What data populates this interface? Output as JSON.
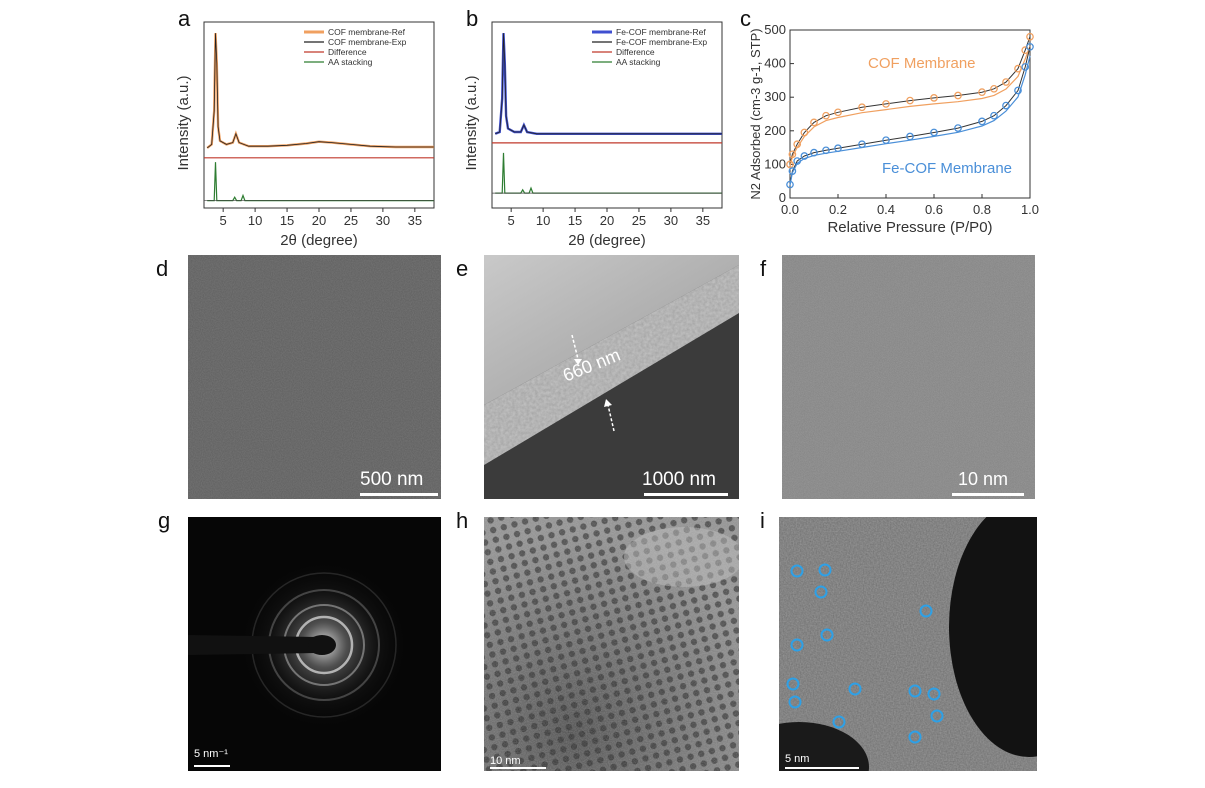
{
  "panel_labels": [
    "a",
    "b",
    "c",
    "d",
    "e",
    "f",
    "g",
    "h",
    "i"
  ],
  "colors": {
    "orange": "#f0a060",
    "blue": "#3f4fd0",
    "red": "#c0392b",
    "green": "#2e7d32",
    "dark": "#222222",
    "light_blue": "#4a8fd8"
  },
  "chart_data": [
    {
      "type": "line",
      "xlabel": "2θ (degree)",
      "ylabel": "Intensity (a.u.)",
      "xlim": [
        2,
        38
      ],
      "xticks": [
        "5",
        "10",
        "15",
        "20",
        "25",
        "30",
        "35"
      ],
      "legend": [
        "COF membrane-Ref",
        "COF membrane-Exp",
        "Difference",
        "AA stacking"
      ],
      "legend_position": "top-right",
      "series": [
        {
          "name": "COF membrane-Ref",
          "x": [
            2.5,
            3.2,
            3.6,
            3.8,
            4.0,
            4.2,
            4.5,
            5.5,
            6.5,
            7.0,
            7.5,
            9,
            12,
            15,
            18,
            20,
            22,
            25,
            28,
            32,
            38
          ],
          "y": [
            0.34,
            0.36,
            0.55,
            0.99,
            0.82,
            0.46,
            0.38,
            0.36,
            0.37,
            0.42,
            0.37,
            0.35,
            0.35,
            0.355,
            0.365,
            0.375,
            0.37,
            0.36,
            0.35,
            0.345,
            0.345
          ]
        },
        {
          "name": "Difference",
          "x": [
            2,
            38
          ],
          "y": [
            0.27,
            0.27
          ]
        },
        {
          "name": "AA stacking",
          "x": [
            2.5,
            3.6,
            3.8,
            4.0,
            4.3,
            6.5,
            6.8,
            7.1,
            7.8,
            8.1,
            8.4,
            38
          ],
          "y": [
            0.0,
            0.0,
            0.23,
            0.0,
            0.0,
            0.0,
            0.02,
            0.0,
            0.0,
            0.03,
            0.0,
            0.0
          ]
        }
      ]
    },
    {
      "type": "line",
      "xlabel": "2θ (degree)",
      "ylabel": "Intensity (a.u.)",
      "xlim": [
        2,
        38
      ],
      "xticks": [
        "5",
        "10",
        "15",
        "20",
        "25",
        "30",
        "35"
      ],
      "legend": [
        "Fe-COF membrane-Ref",
        "Fe-COF membrane-Exp",
        "Difference",
        "AA stacking"
      ],
      "legend_position": "top-right",
      "series": [
        {
          "name": "Fe-COF membrane-Ref",
          "x": [
            2.5,
            3.2,
            3.6,
            3.8,
            4.0,
            4.2,
            4.5,
            5.5,
            6.5,
            7.0,
            7.5,
            9,
            15,
            25,
            38
          ],
          "y": [
            0.42,
            0.43,
            0.62,
            0.99,
            0.82,
            0.52,
            0.45,
            0.43,
            0.43,
            0.47,
            0.43,
            0.42,
            0.42,
            0.42,
            0.42
          ]
        },
        {
          "name": "Difference",
          "x": [
            2,
            38
          ],
          "y": [
            0.35,
            0.35
          ]
        },
        {
          "name": "AA stacking",
          "x": [
            2.5,
            3.6,
            3.8,
            4.0,
            4.3,
            6.5,
            6.8,
            7.1,
            7.8,
            8.1,
            8.4,
            38
          ],
          "y": [
            0.0,
            0.0,
            0.24,
            0.0,
            0.0,
            0.0,
            0.02,
            0.0,
            0.0,
            0.03,
            0.0,
            0.0
          ]
        }
      ]
    },
    {
      "type": "line",
      "xlabel": "Relative Pressure (P/P0)",
      "ylabel": "N2 Adsorbed (cm-3 g-1, STP)",
      "xlim": [
        0,
        1
      ],
      "ylim": [
        0,
        500
      ],
      "xticks": [
        "0.0",
        "0.2",
        "0.4",
        "0.6",
        "0.8",
        "1.0"
      ],
      "yticks": [
        "0",
        "100",
        "200",
        "300",
        "400",
        "500"
      ],
      "annotations": [
        "COF Membrane",
        "Fe-COF Membrane"
      ],
      "series": [
        {
          "name": "COF Membrane",
          "x": [
            0,
            0.01,
            0.03,
            0.06,
            0.1,
            0.15,
            0.2,
            0.3,
            0.4,
            0.5,
            0.6,
            0.7,
            0.8,
            0.85,
            0.9,
            0.95,
            0.98,
            1.0
          ],
          "y": [
            100,
            130,
            160,
            195,
            225,
            245,
            255,
            270,
            280,
            290,
            298,
            305,
            315,
            325,
            345,
            385,
            440,
            480
          ]
        },
        {
          "name": "Fe-COF Membrane",
          "x": [
            0,
            0.01,
            0.03,
            0.06,
            0.1,
            0.15,
            0.2,
            0.3,
            0.4,
            0.5,
            0.6,
            0.7,
            0.8,
            0.85,
            0.9,
            0.95,
            0.98,
            1.0
          ],
          "y": [
            40,
            80,
            110,
            125,
            135,
            142,
            148,
            160,
            172,
            183,
            195,
            208,
            228,
            245,
            275,
            320,
            390,
            450
          ]
        }
      ]
    }
  ],
  "micrographs": {
    "d": {
      "scale_label": "500 nm"
    },
    "e": {
      "scale_label": "1000 nm",
      "annotation": "660 nm"
    },
    "f": {
      "scale_label": "10 nm"
    },
    "g": {
      "scale_label": "5 nm⁻¹"
    },
    "h": {
      "scale_label": "10 nm"
    },
    "i": {
      "scale_label": "5 nm"
    }
  }
}
